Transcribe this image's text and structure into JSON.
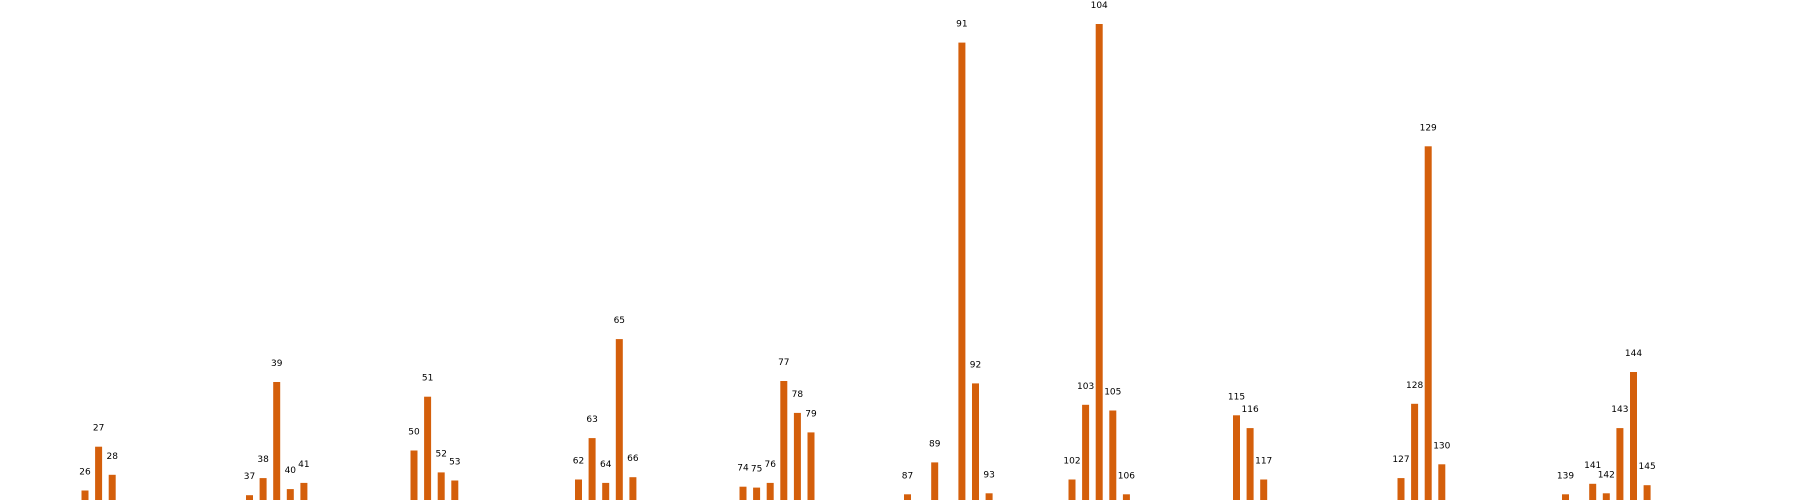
{
  "chart_data": {
    "type": "bar",
    "bar_color": "#d45f0b",
    "grid": false,
    "axes_visible": false,
    "ylim": [
      0,
      100
    ],
    "groups": [
      {
        "bars": [
          {
            "label": "26",
            "value": 2.0
          },
          {
            "label": "27",
            "value": 11.2
          },
          {
            "label": "28",
            "value": 5.3
          }
        ]
      },
      {
        "bars": [
          {
            "label": "37",
            "value": 1.0
          },
          {
            "label": "38",
            "value": 4.6
          },
          {
            "label": "39",
            "value": 24.8
          },
          {
            "label": "40",
            "value": 2.3
          },
          {
            "label": "41",
            "value": 3.6
          }
        ]
      },
      {
        "bars": [
          {
            "label": "50",
            "value": 10.4
          },
          {
            "label": "51",
            "value": 21.7
          },
          {
            "label": "52",
            "value": 5.8
          },
          {
            "label": "53",
            "value": 4.1
          }
        ]
      },
      {
        "bars": [
          {
            "label": "62",
            "value": 4.3
          },
          {
            "label": "63",
            "value": 13.0
          },
          {
            "label": "64",
            "value": 3.6
          },
          {
            "label": "65",
            "value": 33.8
          },
          {
            "label": "66",
            "value": 4.8
          }
        ]
      },
      {
        "bars": [
          {
            "label": "74",
            "value": 2.8
          },
          {
            "label": "75",
            "value": 2.6
          },
          {
            "label": "76",
            "value": 3.6
          },
          {
            "label": "77",
            "value": 25.0
          },
          {
            "label": "78",
            "value": 18.3
          },
          {
            "label": "79",
            "value": 14.2
          }
        ]
      },
      {
        "bars": [
          {
            "label": "87",
            "value": 1.2
          },
          {
            "label": "89",
            "value": 7.9
          },
          {
            "label": "91",
            "value": 96.1
          },
          {
            "label": "92",
            "value": 24.5
          },
          {
            "label": "93",
            "value": 1.4
          }
        ]
      },
      {
        "bars": [
          {
            "label": "102",
            "value": 4.3
          },
          {
            "label": "103",
            "value": 20.0
          },
          {
            "label": "104",
            "value": 100.0
          },
          {
            "label": "105",
            "value": 18.8
          },
          {
            "label": "106",
            "value": 1.2
          }
        ]
      },
      {
        "bars": [
          {
            "label": "115",
            "value": 17.8
          },
          {
            "label": "116",
            "value": 15.1
          },
          {
            "label": "117",
            "value": 4.3
          }
        ]
      },
      {
        "bars": [
          {
            "label": "127",
            "value": 4.6
          },
          {
            "label": "128",
            "value": 20.2
          },
          {
            "label": "129",
            "value": 74.3
          },
          {
            "label": "130",
            "value": 7.5
          }
        ]
      },
      {
        "bars": [
          {
            "label": "139",
            "value": 1.2
          },
          {
            "label": "141",
            "value": 3.4
          },
          {
            "label": "142",
            "value": 1.4
          },
          {
            "label": "143",
            "value": 15.1
          },
          {
            "label": "144",
            "value": 26.9
          },
          {
            "label": "145",
            "value": 3.1
          }
        ]
      }
    ]
  }
}
